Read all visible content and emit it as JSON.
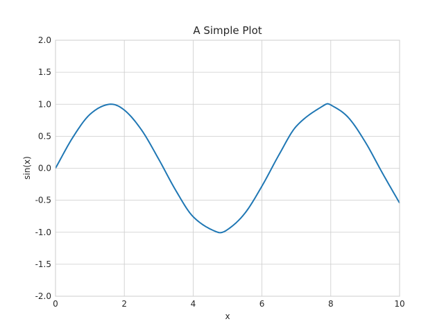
{
  "chart_data": {
    "type": "line",
    "title": "A Simple Plot",
    "xlabel": "x",
    "ylabel": "sin(x)",
    "xlim": [
      0,
      10
    ],
    "ylim": [
      -2.0,
      2.0
    ],
    "x_ticks": [
      "0",
      "2",
      "4",
      "6",
      "8",
      "10"
    ],
    "x_tick_values": [
      0,
      2,
      4,
      6,
      8,
      10
    ],
    "y_ticks": [
      "-2.0",
      "-1.5",
      "-1.0",
      "-0.5",
      "0.0",
      "0.5",
      "1.0",
      "1.5",
      "2.0"
    ],
    "y_tick_values": [
      -2.0,
      -1.5,
      -1.0,
      -0.5,
      0.0,
      0.5,
      1.0,
      1.5,
      2.0
    ],
    "grid": true,
    "series": [
      {
        "color": "#1f77b4",
        "x": [
          0,
          0.5,
          1,
          1.5708,
          2,
          2.5,
          3,
          3.5,
          4,
          4.7124,
          5,
          5.5,
          6,
          6.5,
          7,
          7.854,
          8,
          8.5,
          9,
          9.5,
          10
        ],
        "y": [
          0,
          0.479,
          0.841,
          1.0,
          0.909,
          0.598,
          0.141,
          -0.351,
          -0.757,
          -1.0,
          -0.959,
          -0.706,
          -0.279,
          0.215,
          0.657,
          1.0,
          0.989,
          0.798,
          0.412,
          -0.075,
          -0.544
        ]
      }
    ]
  }
}
